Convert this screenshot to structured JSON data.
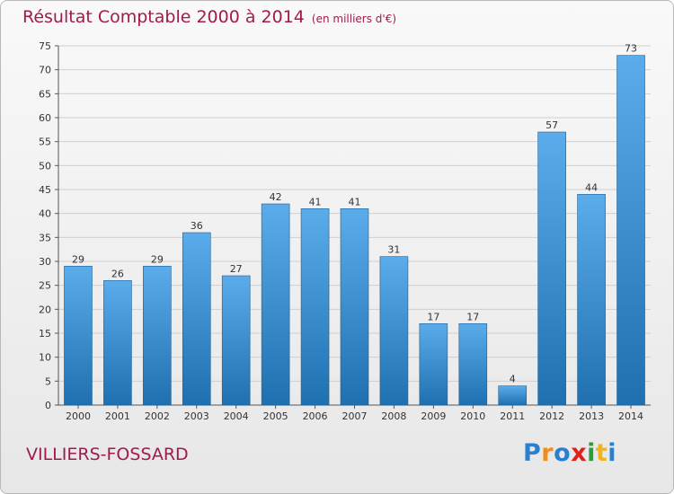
{
  "header": {
    "title": "Résultat Comptable 2000 à 2014",
    "unit": "(en milliers d'€)"
  },
  "footer": {
    "commune": "VILLIERS-FOSSARD",
    "logo_text": "Proxiti"
  },
  "colors": {
    "title": "#a01a4d",
    "bar_top": "#5aaceb",
    "bar_bottom": "#1f70b0",
    "grid": "#cfcfcf",
    "logo_letters": [
      "#2b7fd1",
      "#f08c1a",
      "#2b7fd1",
      "#e0201b",
      "#2b9d3a",
      "#f0b51a",
      "#2b7fd1"
    ]
  },
  "chart_data": {
    "type": "bar",
    "title": "Résultat Comptable 2000 à 2014",
    "subtitle": "(en milliers d'€)",
    "xlabel": "",
    "ylabel": "",
    "categories": [
      "2000",
      "2001",
      "2002",
      "2003",
      "2004",
      "2005",
      "2006",
      "2007",
      "2008",
      "2009",
      "2010",
      "2011",
      "2012",
      "2013",
      "2014"
    ],
    "values": [
      29,
      26,
      29,
      36,
      27,
      42,
      41,
      41,
      31,
      17,
      17,
      4,
      57,
      44,
      73
    ],
    "ylim": [
      0,
      75
    ],
    "yticks": [
      0,
      5,
      10,
      15,
      20,
      25,
      30,
      35,
      40,
      45,
      50,
      55,
      60,
      65,
      70,
      75
    ],
    "grid": true,
    "data_labels": true
  }
}
